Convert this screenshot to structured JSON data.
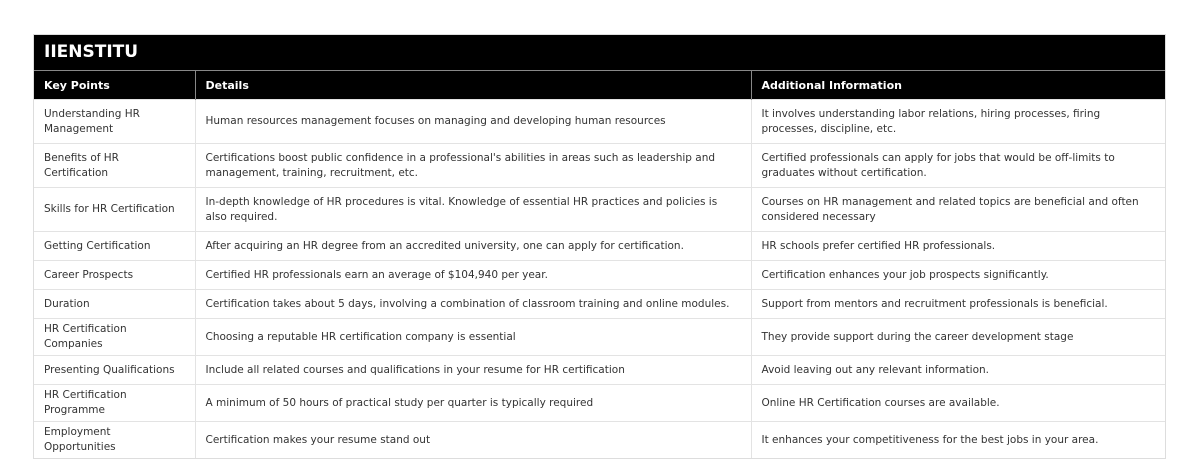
{
  "title": "IIENSTITU",
  "headers": [
    "Key Points",
    "Details",
    "Additional Information"
  ],
  "rows": [
    [
      "Understanding HR Management",
      "Human resources management focuses on managing and developing human resources",
      "It involves understanding labor relations, hiring processes, firing processes, discipline, etc."
    ],
    [
      "Benefits of HR Certification",
      "Certifications boost public confidence in a professional's abilities in areas such as leadership and management, training, recruitment, etc.",
      "Certified professionals can apply for jobs that would be off-limits to graduates without certification."
    ],
    [
      "Skills for HR Certification",
      "In-depth knowledge of HR procedures is vital. Knowledge of essential HR practices and policies is also required.",
      "Courses on HR management and related topics are beneficial and often considered necessary"
    ],
    [
      "Getting Certification",
      "After acquiring an HR degree from an accredited university, one can apply for certification.",
      "HR schools prefer certified HR professionals."
    ],
    [
      "Career Prospects",
      "Certified HR professionals earn an average of $104,940 per year.",
      "Certification enhances your job prospects significantly."
    ],
    [
      "Duration",
      "Certification takes about 5 days, involving a combination of classroom training and online modules.",
      "Support from mentors and recruitment professionals is beneficial."
    ],
    [
      "HR Certification Companies",
      "Choosing a reputable HR certification company is essential",
      "They provide support during the career development stage"
    ],
    [
      "Presenting Qualifications",
      "Include all related courses and qualifications in your resume for HR certification",
      "Avoid leaving out any relevant information."
    ],
    [
      "HR Certification Programme",
      "A minimum of 50 hours of practical study per quarter is typically required",
      "Online HR Certification courses are available."
    ],
    [
      "Employment Opportunities",
      "Certification makes your resume stand out",
      "It enhances your competitiveness for the best jobs in your area."
    ]
  ]
}
